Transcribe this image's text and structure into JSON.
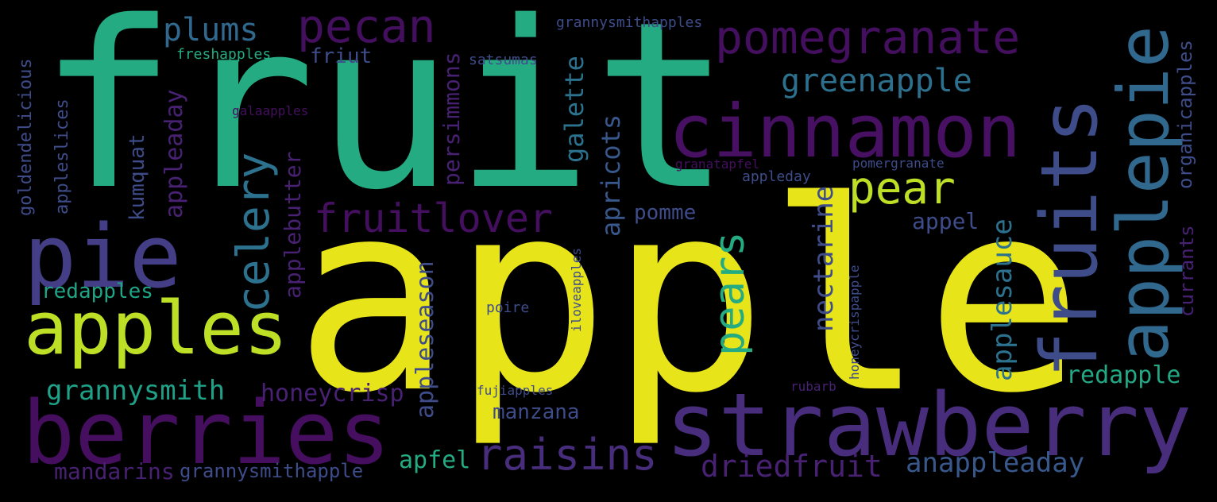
{
  "words": [
    {
      "text": "apple",
      "color": "#e7e419"
    },
    {
      "text": "fruit",
      "color": "#25ab82"
    },
    {
      "text": "cinnamon",
      "color": "#471063"
    },
    {
      "text": "strawberry",
      "color": "#472d7b"
    },
    {
      "text": "berries",
      "color": "#450e5e"
    },
    {
      "text": "apples",
      "color": "#bddf26"
    },
    {
      "text": "pie",
      "color": "#433e85"
    },
    {
      "text": "fruits",
      "color": "#3e4c8a"
    },
    {
      "text": "applepie",
      "color": "#31688e"
    },
    {
      "text": "pomegranate",
      "color": "#440f5e"
    },
    {
      "text": "pecan",
      "color": "#440f5e"
    },
    {
      "text": "plums",
      "color": "#31688e"
    },
    {
      "text": "pear",
      "color": "#bddf26"
    },
    {
      "text": "fruitlover",
      "color": "#440f5e"
    },
    {
      "text": "greenapple",
      "color": "#2d708e"
    },
    {
      "text": "celery",
      "color": "#2c728e"
    },
    {
      "text": "pears",
      "color": "#25ab82"
    },
    {
      "text": "raisins",
      "color": "#472d7b"
    },
    {
      "text": "grannysmith",
      "color": "#1fa187"
    },
    {
      "text": "honeycrisp",
      "color": "#482173"
    },
    {
      "text": "redapples",
      "color": "#20a486"
    },
    {
      "text": "redapple",
      "color": "#22a884"
    },
    {
      "text": "driedfruit",
      "color": "#482173"
    },
    {
      "text": "anappleaday",
      "color": "#38588c"
    },
    {
      "text": "apfel",
      "color": "#25ab82"
    },
    {
      "text": "mandarins",
      "color": "#482173"
    },
    {
      "text": "grannysmithapple",
      "color": "#3e4c8a"
    },
    {
      "text": "manzana",
      "color": "#3e4c8a"
    },
    {
      "text": "pomme",
      "color": "#3e4c8a"
    },
    {
      "text": "appel",
      "color": "#3e4c8a"
    },
    {
      "text": "friut",
      "color": "#3e4c8a"
    },
    {
      "text": "freshapples",
      "color": "#25ab82"
    },
    {
      "text": "grannysmithapples",
      "color": "#3e4c8a"
    },
    {
      "text": "satsumas",
      "color": "#3e4c8a"
    },
    {
      "text": "galaapples",
      "color": "#440f5e"
    },
    {
      "text": "granatapfel",
      "color": "#440f5e"
    },
    {
      "text": "pomergranate",
      "color": "#3e4c8a"
    },
    {
      "text": "appleday",
      "color": "#3e4c8a"
    },
    {
      "text": "poire",
      "color": "#3e4c8a"
    },
    {
      "text": "fujiapples",
      "color": "#3e4c8a"
    },
    {
      "text": "rubarb",
      "color": "#482173"
    },
    {
      "text": "goldendelicious",
      "color": "#3e4c8a"
    },
    {
      "text": "appleslices",
      "color": "#3e4c8a"
    },
    {
      "text": "kumquat",
      "color": "#3e4c8a"
    },
    {
      "text": "appleaday",
      "color": "#482173"
    },
    {
      "text": "applebutter",
      "color": "#482173"
    },
    {
      "text": "persimmons",
      "color": "#482173"
    },
    {
      "text": "galette",
      "color": "#2c728e"
    },
    {
      "text": "apricots",
      "color": "#38588c"
    },
    {
      "text": "appleseason",
      "color": "#3e4c8a"
    },
    {
      "text": "nectarine",
      "color": "#3e4c8a"
    },
    {
      "text": "applesauce",
      "color": "#2c728e"
    },
    {
      "text": "iloveapples",
      "color": "#3e4c8a"
    },
    {
      "text": "honeycrispapple",
      "color": "#3e4c8a"
    },
    {
      "text": "currants",
      "color": "#482173"
    },
    {
      "text": "organicapples",
      "color": "#3e4c8a"
    }
  ]
}
